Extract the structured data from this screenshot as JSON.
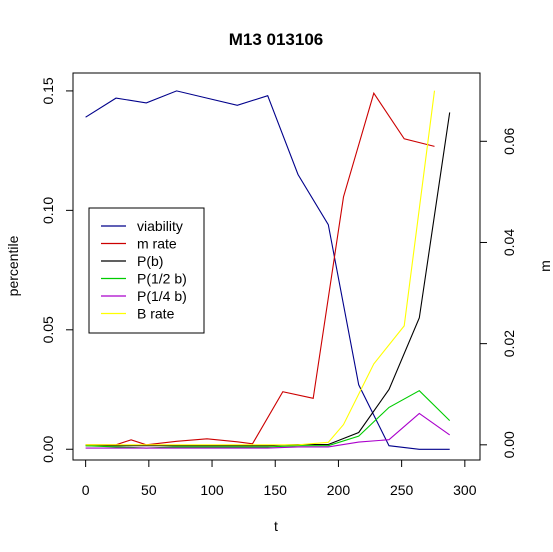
{
  "chart_data": {
    "type": "line",
    "title": "M13 013106",
    "xlabel": "t",
    "ylabel": "percentile",
    "y2label": "m",
    "xlim": [
      -10,
      312
    ],
    "ylim": [
      -0.0045,
      0.1575
    ],
    "y2lim": [
      -0.003,
      0.0735
    ],
    "x_ticks": [
      "0",
      "50",
      "100",
      "150",
      "200",
      "250",
      "300"
    ],
    "y_ticks": [
      "0.00",
      "0.05",
      "0.10",
      "0.15"
    ],
    "y2_ticks": [
      "0.00",
      "0.02",
      "0.04",
      "0.06"
    ],
    "legend_position": "left",
    "series": [
      {
        "name": "viability",
        "color": "#00008B",
        "axis": "left",
        "x": [
          0,
          24,
          48,
          72,
          96,
          120,
          144,
          168,
          192,
          216,
          240,
          264,
          288
        ],
        "y": [
          0.139,
          0.147,
          0.145,
          0.15,
          0.147,
          0.144,
          0.148,
          0.115,
          0.094,
          0.027,
          0.0015,
          0.0,
          0.0
        ]
      },
      {
        "name": "m rate",
        "color": "#CC0000",
        "axis": "right",
        "x": [
          0,
          24,
          36,
          48,
          72,
          96,
          120,
          132,
          156,
          180,
          204,
          228,
          252,
          276
        ],
        "y": [
          0.0,
          0.0,
          0.001,
          0.0,
          0.0007,
          0.0012,
          0.0006,
          0.0002,
          0.0105,
          0.0092,
          0.049,
          0.0695,
          0.0605,
          0.059
        ]
      },
      {
        "name": "P(b)",
        "color": "#000000",
        "axis": "left",
        "x": [
          0,
          24,
          48,
          72,
          96,
          120,
          144,
          168,
          192,
          216,
          240,
          264,
          288
        ],
        "y": [
          0.0015,
          0.0015,
          0.0015,
          0.0015,
          0.0015,
          0.0015,
          0.0015,
          0.002,
          0.002,
          0.007,
          0.025,
          0.055,
          0.141
        ]
      },
      {
        "name": "P(1/2 b)",
        "color": "#00CC00",
        "axis": "left",
        "x": [
          0,
          24,
          48,
          72,
          96,
          120,
          144,
          168,
          192,
          216,
          240,
          264,
          288
        ],
        "y": [
          0.0015,
          0.001,
          0.0005,
          0.001,
          0.001,
          0.001,
          0.001,
          0.0015,
          0.0015,
          0.0055,
          0.0175,
          0.0245,
          0.012
        ]
      },
      {
        "name": "P(1/4 b)",
        "color": "#AA00CC",
        "axis": "left",
        "x": [
          0,
          24,
          48,
          72,
          96,
          120,
          144,
          168,
          192,
          216,
          240,
          264,
          288
        ],
        "y": [
          0.0005,
          0.0005,
          0.0005,
          0.0005,
          0.0005,
          0.0005,
          0.0005,
          0.001,
          0.001,
          0.003,
          0.004,
          0.015,
          0.006
        ]
      },
      {
        "name": "B rate",
        "color": "#FFFF00",
        "axis": "right",
        "x": [
          0,
          24,
          48,
          72,
          96,
          120,
          144,
          168,
          192,
          204,
          228,
          252,
          276
        ],
        "y": [
          0.0,
          0.0,
          0.0,
          0.0,
          0.0,
          0.0,
          0.0,
          0.0,
          0.0005,
          0.004,
          0.016,
          0.0235,
          0.07
        ]
      }
    ]
  }
}
